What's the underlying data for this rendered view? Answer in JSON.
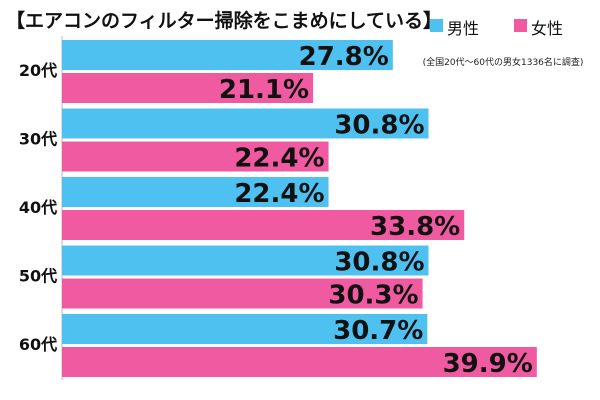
{
  "title": "【エアコンのフィルター掃除をこまめにしている】",
  "note": "(全国20代〜60代の男女1336名に調査)",
  "colors": {
    "male": "#4fc1f0",
    "female": "#ef5aa0",
    "axis": "#bbbbbb",
    "text": "#111111"
  },
  "chart_data": {
    "type": "bar",
    "orientation": "horizontal",
    "categories": [
      "20代",
      "30代",
      "40代",
      "50代",
      "60代"
    ],
    "series": [
      {
        "name": "男性",
        "values": [
          27.8,
          30.8,
          22.4,
          30.8,
          30.7
        ],
        "labels": [
          "27.8%",
          "30.8%",
          "22.4%",
          "30.8%",
          "30.7%"
        ]
      },
      {
        "name": "女性",
        "values": [
          21.1,
          22.4,
          33.8,
          30.3,
          39.9
        ],
        "labels": [
          "21.1%",
          "22.4%",
          "33.8%",
          "30.3%",
          "39.9%"
        ]
      }
    ],
    "legend": "top-right",
    "grid": false
  }
}
